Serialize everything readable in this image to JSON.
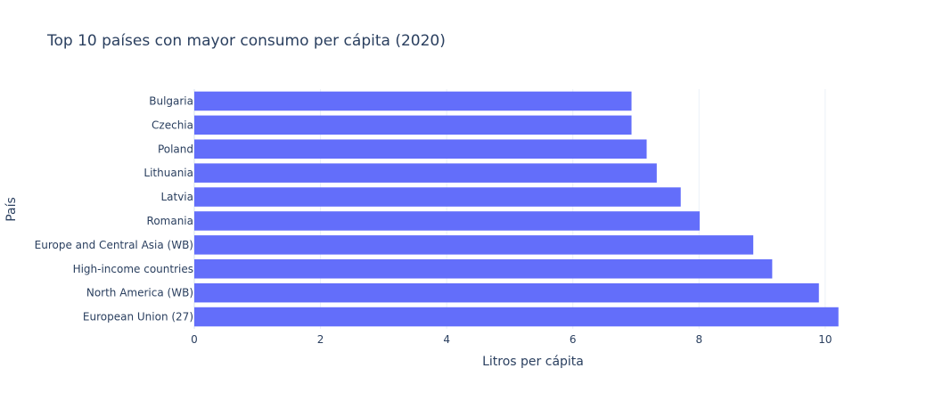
{
  "chart_data": {
    "type": "bar",
    "orientation": "horizontal",
    "title": "Top 10 países con mayor consumo per cápita (2020)",
    "xlabel": "Litros per cápita",
    "ylabel": "País",
    "xlim": [
      0,
      10.2
    ],
    "xticks": [
      0,
      2,
      4,
      6,
      8,
      10
    ],
    "grid": true,
    "bar_color": "#636efa",
    "categories": [
      "Bulgaria",
      "Czechia",
      "Poland",
      "Lithuania",
      "Latvia",
      "Romania",
      "Europe and Central Asia (WB)",
      "High-income countries",
      "North America (WB)",
      "European Union (27)"
    ],
    "values": [
      6.93,
      6.93,
      7.17,
      7.33,
      7.71,
      8.01,
      8.86,
      9.16,
      9.9,
      10.21
    ]
  }
}
